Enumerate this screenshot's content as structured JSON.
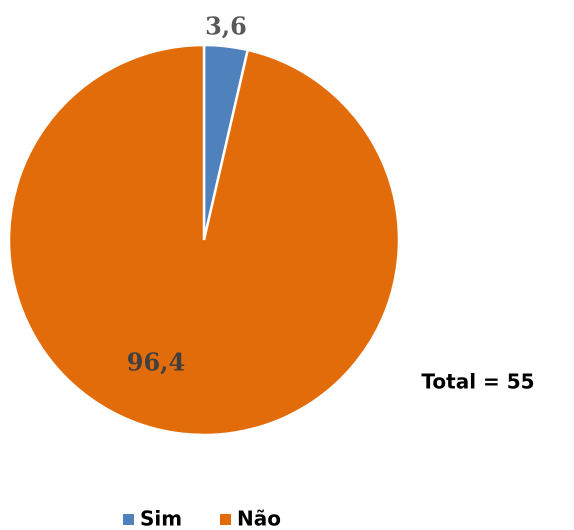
{
  "chart_data": {
    "type": "pie",
    "categories": [
      "Sim",
      "Não"
    ],
    "values": [
      3.6,
      96.4
    ],
    "value_labels": [
      "3,6",
      "96,4"
    ],
    "colors": [
      "#4f81bd",
      "#e36c0a"
    ],
    "annotation": "Total = 55",
    "legend": "bottom"
  }
}
